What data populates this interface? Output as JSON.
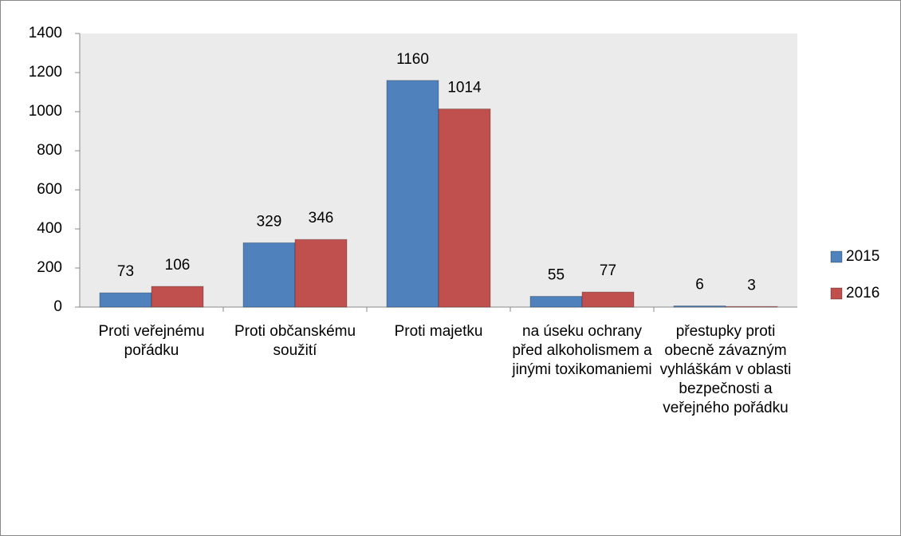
{
  "chart_data": {
    "type": "bar",
    "categories": [
      "Proti veřejnému pořádku",
      "Proti občanskému soužití",
      "Proti majetku",
      "na úseku ochrany před alkoholismem a jinými toxikomaniemi",
      "přestupky proti obecně závazným vyhláškám v oblasti bezpečnosti a veřejného pořádku"
    ],
    "series": [
      {
        "name": "2015",
        "color": "#4f81bd",
        "values": [
          73,
          329,
          1160,
          55,
          6
        ]
      },
      {
        "name": "2016",
        "color": "#c0504d",
        "values": [
          106,
          346,
          1014,
          77,
          3
        ]
      }
    ],
    "ylim": [
      0,
      1400
    ],
    "yticks": [
      0,
      200,
      400,
      600,
      800,
      1000,
      1200,
      1400
    ],
    "grid": false,
    "legend": "right"
  }
}
